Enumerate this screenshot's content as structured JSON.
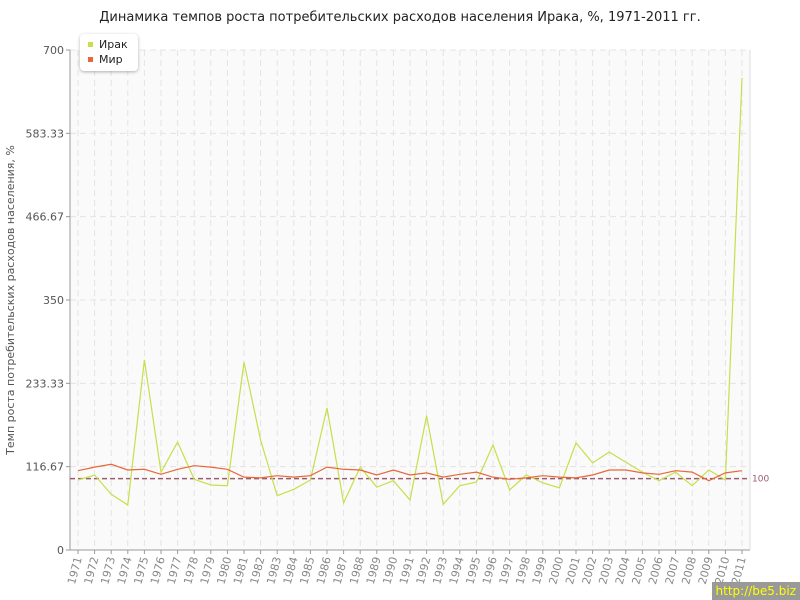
{
  "chart_data": {
    "type": "line",
    "title": "Динамика темпов роста потребительских расходов населения Ирака, %, 1971-2011 гг.",
    "ylabel": "Темп роста потребительских расходов населения, %",
    "xlabel": "",
    "ylim": [
      0,
      700
    ],
    "yticks": [
      "0",
      "116.67",
      "233.33",
      "350",
      "466.67",
      "583.33",
      "700"
    ],
    "grid": true,
    "legend": "top-left",
    "reference_line": {
      "value": 100,
      "label": "100",
      "color": "#a05a6e"
    },
    "x": [
      1971,
      1972,
      1973,
      1974,
      1975,
      1976,
      1977,
      1978,
      1979,
      1980,
      1981,
      1982,
      1983,
      1984,
      1985,
      1986,
      1987,
      1988,
      1989,
      1990,
      1991,
      1992,
      1993,
      1994,
      1995,
      1996,
      1997,
      1998,
      1999,
      2000,
      2001,
      2002,
      2003,
      2004,
      2005,
      2006,
      2007,
      2008,
      2009,
      2010,
      2011
    ],
    "series": [
      {
        "name": "Ирак",
        "color": "#c5e04a",
        "values": [
          98,
          105,
          78,
          63,
          266,
          109,
          151,
          99,
          91,
          90,
          263,
          154,
          76,
          85,
          98,
          199,
          66,
          116,
          88,
          97,
          70,
          188,
          64,
          90,
          95,
          147,
          84,
          105,
          94,
          87,
          150,
          122,
          137,
          123,
          109,
          97,
          109,
          90,
          112,
          98,
          661
        ]
      },
      {
        "name": "Мир",
        "color": "#e8673a",
        "values": [
          111,
          116,
          120,
          112,
          113,
          106,
          113,
          118,
          116,
          113,
          102,
          101,
          104,
          102,
          104,
          116,
          113,
          112,
          105,
          112,
          105,
          108,
          102,
          106,
          109,
          102,
          99,
          101,
          104,
          102,
          101,
          105,
          112,
          112,
          108,
          106,
          111,
          109,
          97,
          108,
          111
        ]
      }
    ]
  },
  "watermark": "http://be5.biz"
}
